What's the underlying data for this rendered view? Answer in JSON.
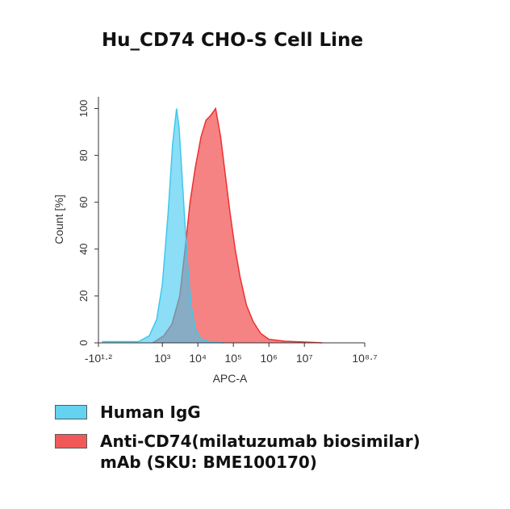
{
  "chart_data": {
    "type": "area",
    "title": "Hu_CD74 CHO-S Cell Line",
    "x_label": "APC-A",
    "y_label": "Count [%]",
    "xlim": [
      1.2,
      8.7
    ],
    "xticks": [
      {
        "value": 1.2,
        "label": "-10¹·²"
      },
      {
        "value": 3,
        "label": "10³"
      },
      {
        "value": 4,
        "label": "10⁴"
      },
      {
        "value": 5,
        "label": "10⁵"
      },
      {
        "value": 6,
        "label": "10⁶"
      },
      {
        "value": 7,
        "label": "10⁷"
      },
      {
        "value": 8.7,
        "label": "10⁸·⁷"
      }
    ],
    "ylim": [
      0,
      105
    ],
    "yticks": [
      0,
      20,
      40,
      60,
      80,
      100
    ],
    "series": [
      {
        "name": "Human IgG",
        "color": "#3ec8ee",
        "x": [
          1.3,
          2.33,
          2.63,
          2.84,
          3.0,
          3.16,
          3.29,
          3.4,
          3.47,
          3.56,
          3.64,
          3.73,
          3.82,
          3.93,
          4.09,
          4.39,
          4.73
        ],
        "values": [
          0.5,
          0.5,
          3,
          10,
          25,
          55,
          85,
          100,
          92,
          70,
          50,
          30,
          15,
          6,
          1.5,
          0.3,
          0
        ]
      },
      {
        "name": "Anti-CD74(milatuzumab biosimilar) mAb (SKU: BME100170)",
        "color": "#ee3030",
        "x": [
          2.73,
          3.04,
          3.27,
          3.49,
          3.64,
          3.78,
          3.93,
          4.09,
          4.23,
          4.36,
          4.5,
          4.64,
          4.77,
          4.91,
          5.05,
          5.19,
          5.37,
          5.56,
          5.77,
          6.0,
          6.45,
          7.06,
          7.5
        ],
        "values": [
          0,
          3,
          8,
          20,
          40,
          60,
          75,
          88,
          95,
          97,
          100,
          88,
          72,
          55,
          40,
          28,
          16,
          9,
          4,
          1.5,
          0.7,
          0.3,
          0
        ]
      }
    ]
  }
}
